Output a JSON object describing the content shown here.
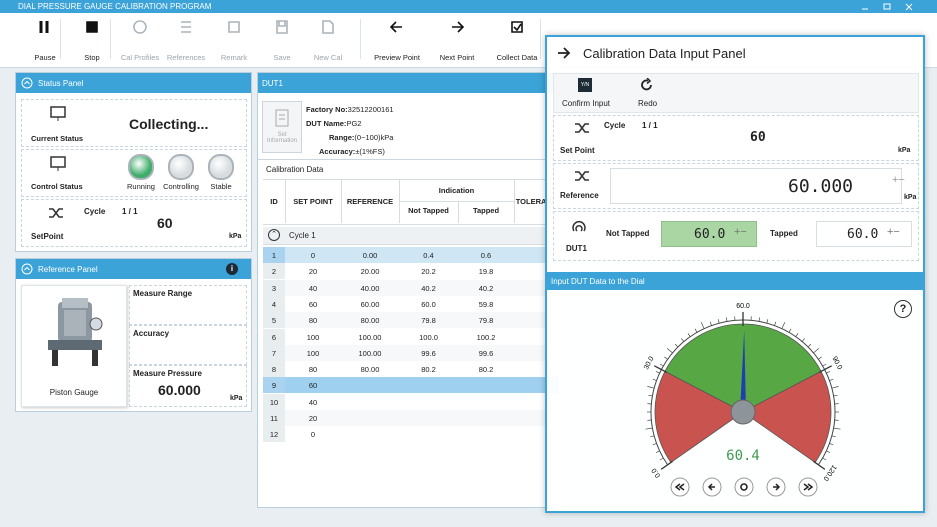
{
  "title_bar": {
    "title": "DIAL PRESSURE GAUGE CALIBRATION PROGRAM"
  },
  "toolbar": [
    "Pause",
    "Stop",
    "Cal Profiles",
    "References",
    "Remark",
    "Save",
    "New Cal",
    "Preview Point",
    "Next Point",
    "Collect Data"
  ],
  "status_panel": {
    "title": "Status Panel",
    "current_status_label": "Current Status",
    "current_status": "Collecting...",
    "control_status_label": "Control Status",
    "indicators": [
      "Running",
      "Controlling",
      "Stable"
    ],
    "setpoint_label": "SetPoint",
    "cycle_label": "Cycle",
    "cycle": "1 / 1",
    "setpoint": "60",
    "unit": "kPa"
  },
  "reference_panel": {
    "title": "Reference Panel",
    "info": "i",
    "device": "Piston Gauge",
    "measure_range_label": "Measure Range",
    "accuracy_label": "Accuracy",
    "measure_pressure_label": "Measure Pressure",
    "measure_pressure": "60.000",
    "unit": "kPa"
  },
  "dut_panel": {
    "title": "DUT1",
    "set_info": "Set Information",
    "factory_no_label": "Factory No:",
    "factory_no": "32512200161",
    "dut_name_label": "DUT Name:",
    "dut_name": "PG2",
    "range_label": "Range:",
    "range": "(0~100)kPa",
    "accuracy_label": "Accuracy:",
    "accuracy": "±(1%FS)",
    "table_title": "Calibration Data",
    "columns": {
      "id": "ID",
      "set_point": "SET POINT",
      "reference": "REFERENCE",
      "indication": "Indication",
      "not_tapped": "Not Tapped",
      "tapped": "Tapped",
      "tolerance": "TOLERANCE"
    },
    "cycle": "Cycle 1",
    "rows": [
      [
        "1",
        "0",
        "0.00",
        "0.4",
        "0.6"
      ],
      [
        "2",
        "20",
        "20.00",
        "20.2",
        "19.8"
      ],
      [
        "3",
        "40",
        "40.00",
        "40.2",
        "40.2"
      ],
      [
        "4",
        "60",
        "60.00",
        "60.0",
        "59.8"
      ],
      [
        "5",
        "80",
        "80.00",
        "79.8",
        "79.8"
      ],
      [
        "6",
        "100",
        "100.00",
        "100.0",
        "100.2"
      ],
      [
        "7",
        "100",
        "100.00",
        "99.6",
        "99.6"
      ],
      [
        "8",
        "80",
        "80.00",
        "80.2",
        "80.2"
      ],
      [
        "9",
        "60"
      ],
      [
        "10",
        "40"
      ],
      [
        "11",
        "20"
      ],
      [
        "12",
        "0"
      ]
    ]
  },
  "input_panel": {
    "title": "Calibration Data Input Panel",
    "confirm": "Confirm Input",
    "redo": "Redo",
    "set_point_label": "Set Point",
    "cycle_label": "Cycle",
    "cycle": "1 / 1",
    "set_point": "60",
    "unit": "kPa",
    "reference_label": "Reference",
    "reference": "60.000",
    "dut_label": "DUT1",
    "not_tapped_label": "Not Tapped",
    "not_tapped": "60.0",
    "tapped_label": "Tapped",
    "tapped": "60.0",
    "dial_title": "Input DUT Data to the Dial",
    "help": "?",
    "dial": {
      "range": [
        0,
        120
      ],
      "ticks": [
        {
          "value": 0,
          "label": "0.0"
        },
        {
          "value": 30,
          "label": "30.0"
        },
        {
          "value": 60,
          "label": "60.0"
        },
        {
          "value": 90,
          "label": "90.0"
        },
        {
          "value": 120,
          "label": "120.0"
        }
      ],
      "value": 60.4
    }
  }
}
